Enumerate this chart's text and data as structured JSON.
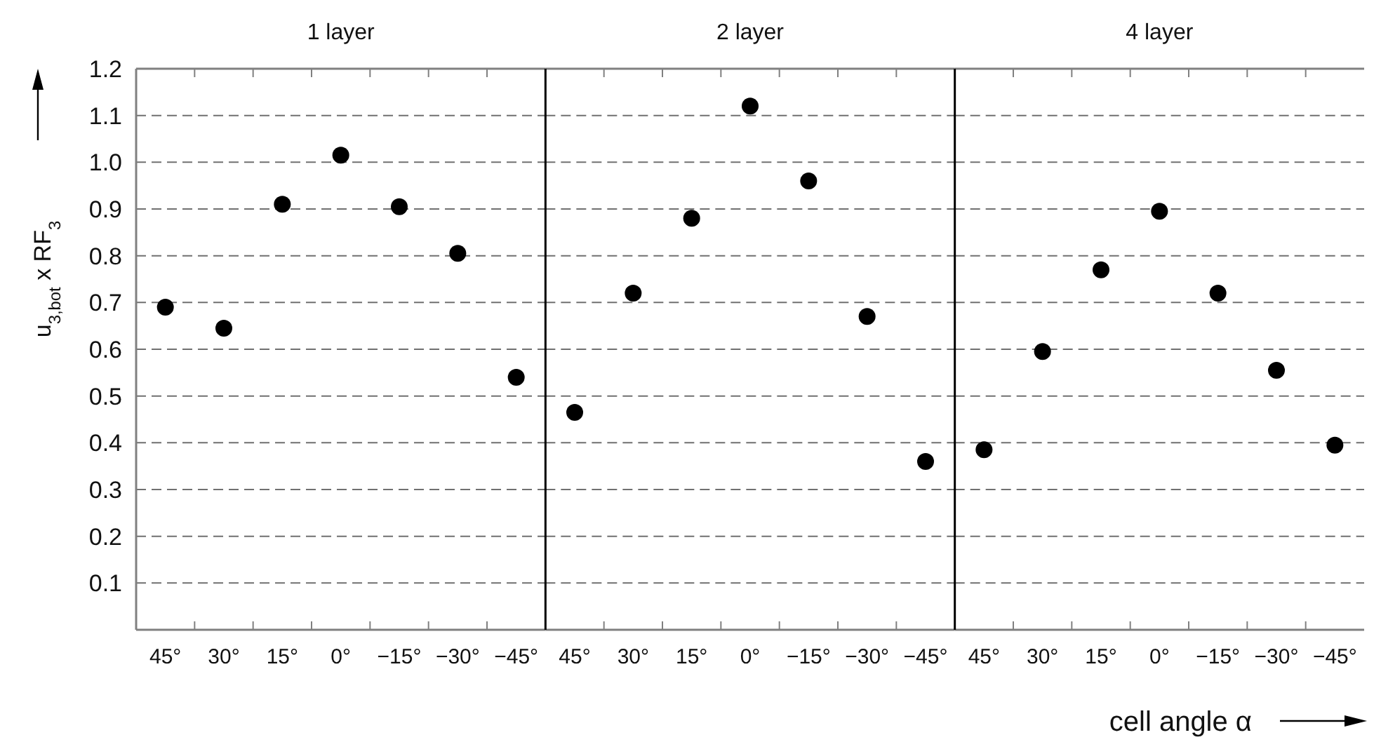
{
  "chart_data": [
    {
      "type": "scatter",
      "title": "1 layer",
      "ylabel": "u$_{3,bot}$ x RF$_{3}$",
      "categories": [
        "45°",
        "30°",
        "15°",
        "0°",
        "−15°",
        "−30°",
        "−45°"
      ],
      "series": [
        {
          "color": "#000000",
          "values": [
            0.69,
            0.645,
            0.91,
            1.015,
            0.905,
            0.805,
            0.54
          ]
        }
      ],
      "ylim": [
        0,
        1.2
      ],
      "yticks": [
        0.1,
        0.2,
        0.3,
        0.4,
        0.5,
        0.6,
        0.7,
        0.8,
        0.9,
        {
          "value": 1,
          "label": "1.0"
        },
        1.1,
        1.2
      ],
      "grid": "y",
      "marker": "circle"
    },
    {
      "type": "scatter",
      "title": "2 layer",
      "categories": [
        "45°",
        "30°",
        "15°",
        "0°",
        "−15°",
        "−30°",
        "−45°"
      ],
      "series": [
        {
          "color": "#000000",
          "values": [
            0.465,
            0.72,
            0.88,
            1.12,
            0.96,
            0.67,
            0.36
          ]
        }
      ],
      "ylim": [
        0,
        1.2
      ],
      "yticks": [
        0.1,
        0.2,
        0.3,
        0.4,
        0.5,
        0.6,
        0.7,
        0.8,
        0.9,
        1,
        1.1,
        1.2
      ],
      "grid": "y",
      "marker": "circle",
      "tick_labels": "x"
    },
    {
      "type": "scatter",
      "title": "4 layer",
      "xlabel": "cell angle α",
      "categories": [
        "45°",
        "30°",
        "15°",
        "0°",
        "−15°",
        "−30°",
        "−45°"
      ],
      "series": [
        {
          "color": "#000000",
          "values": [
            0.385,
            0.595,
            0.77,
            0.895,
            0.72,
            0.555,
            0.395
          ]
        }
      ],
      "ylim": [
        0,
        1.2
      ],
      "yticks": [
        0.1,
        0.2,
        0.3,
        0.4,
        0.5,
        0.6,
        0.7,
        0.8,
        0.9,
        1,
        1.1,
        1.2
      ],
      "grid": "y",
      "marker": "circle",
      "tick_labels": "x"
    }
  ]
}
